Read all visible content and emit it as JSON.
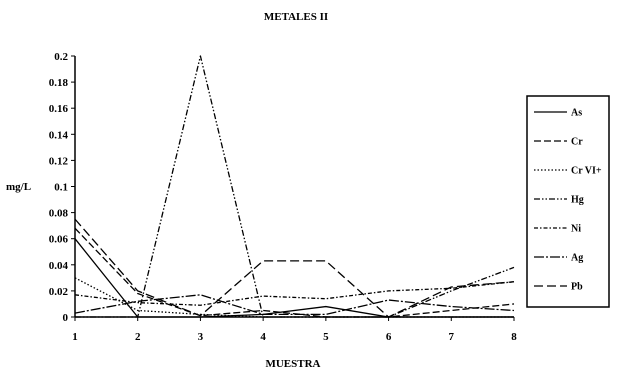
{
  "chart_data": {
    "type": "line",
    "title": "METALES II",
    "xlabel": "MUESTRA",
    "ylabel": "mg/L",
    "x": [
      1,
      2,
      3,
      4,
      5,
      6,
      7,
      8
    ],
    "xlim": [
      1,
      8
    ],
    "ylim": [
      0,
      0.2
    ],
    "yticks": [
      0,
      0.02,
      0.04,
      0.06,
      0.08,
      0.1,
      0.12,
      0.14,
      0.16,
      0.18,
      0.2
    ],
    "ytick_labels": [
      "0",
      "0.02",
      "0.04",
      "0.06",
      "0.08",
      "0.1",
      "0.12",
      "0.14",
      "0.16",
      "0.18",
      "0.2"
    ],
    "xtick_labels": [
      "1",
      "2",
      "3",
      "4",
      "5",
      "6",
      "7",
      "8"
    ],
    "grid": false,
    "legend_position": "right",
    "series": [
      {
        "name": "As",
        "values": [
          0.06,
          0.0,
          0.0,
          0.002,
          0.008,
          0.0,
          0.0,
          0.0
        ],
        "dash": ""
      },
      {
        "name": "Cr",
        "values": [
          0.068,
          0.018,
          0.001,
          0.005,
          0.0,
          0.0,
          0.005,
          0.01
        ],
        "dash": "7 3"
      },
      {
        "name": "Cr VI+",
        "values": [
          0.03,
          0.005,
          0.002,
          0.0,
          0.0,
          0.0,
          0.0,
          0.0
        ],
        "dash": "1.5 2"
      },
      {
        "name": "Hg",
        "values": [
          0.0,
          0.0,
          0.2,
          0.0,
          0.0,
          0.0,
          0.02,
          0.038
        ],
        "dash": "6 2 1.5 2 1.5 2"
      },
      {
        "name": "Ni",
        "values": [
          0.017,
          0.011,
          0.009,
          0.016,
          0.014,
          0.02,
          0.022,
          0.027
        ],
        "dash": "4 2 1.5 2"
      },
      {
        "name": "Ag",
        "values": [
          0.003,
          0.012,
          0.017,
          0.002,
          0.002,
          0.013,
          0.008,
          0.005
        ],
        "dash": "10 2 2 2"
      },
      {
        "name": "Pb",
        "values": [
          0.075,
          0.02,
          0.001,
          0.043,
          0.043,
          0.0,
          0.023,
          0.027
        ],
        "dash": "9 4"
      }
    ]
  }
}
